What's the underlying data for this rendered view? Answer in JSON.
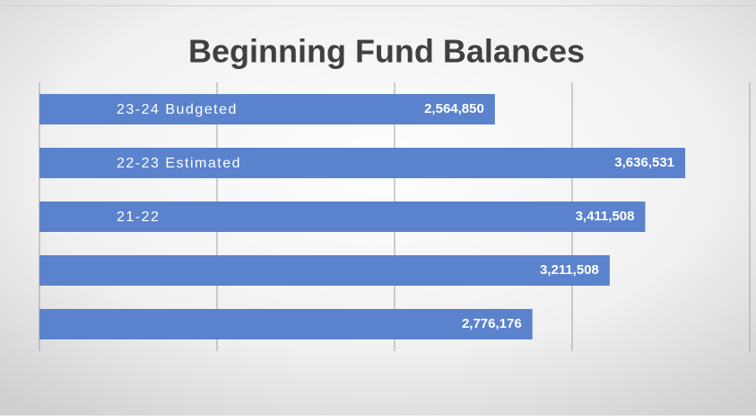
{
  "chart_data": {
    "type": "hbar",
    "title": "Beginning Fund Balances",
    "categories": [
      "23-24 Budgeted",
      "22-23 Estimated",
      "21-22",
      null,
      null
    ],
    "values": [
      2564850,
      3636531,
      3411508,
      3211508,
      2776176
    ],
    "value_labels": [
      "2,564,850",
      "3,636,531",
      "3,411,508",
      "3,211,508",
      "2,776,176"
    ],
    "color": "#5b82cc",
    "xlim": [
      0,
      4000000
    ],
    "xticks": [
      0,
      1000000,
      2000000,
      3000000,
      4000000
    ],
    "grid": true
  }
}
